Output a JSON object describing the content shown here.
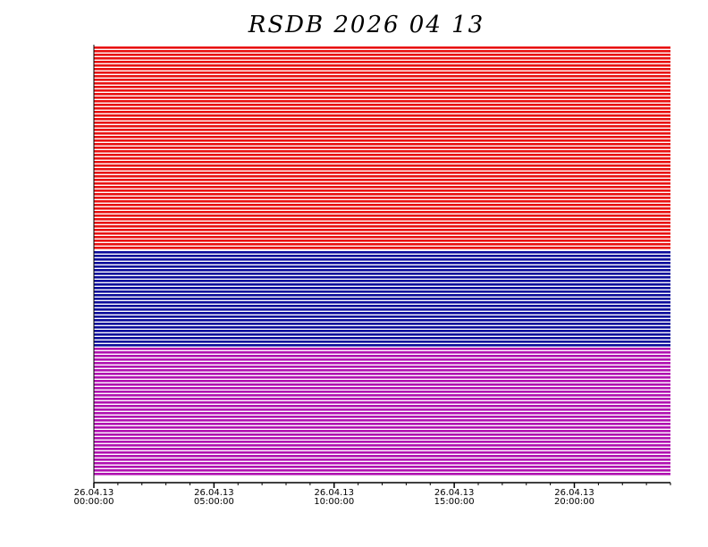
{
  "chart_data": {
    "type": "timeline",
    "title": "RSDB  2026  04  13",
    "xlim": [
      0,
      24
    ],
    "xticks": [
      {
        "value": 0,
        "date": "26.04.13",
        "time": "00:00:00"
      },
      {
        "value": 5,
        "date": "26.04.13",
        "time": "05:00:00"
      },
      {
        "value": 10,
        "date": "26.04.13",
        "time": "10:00:00"
      },
      {
        "value": 15,
        "date": "26.04.13",
        "time": "15:00:00"
      },
      {
        "value": 20,
        "date": "26.04.13",
        "time": "20:00:00"
      }
    ],
    "bands": [
      {
        "color": "#e81010"
      },
      {
        "color": "#0a0a9a"
      },
      {
        "color": "#b010b0"
      }
    ]
  }
}
